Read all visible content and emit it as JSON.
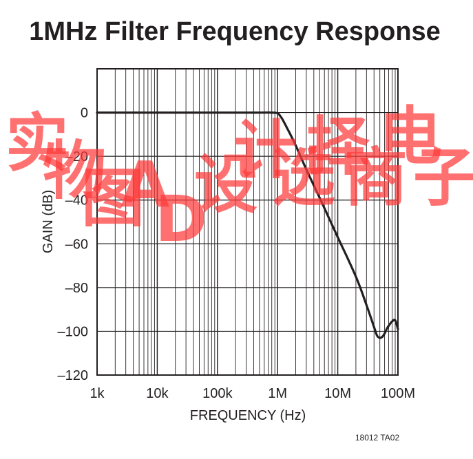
{
  "chart_data": {
    "type": "line",
    "title": "1MHz Filter Frequency Response",
    "xlabel": "FREQUENCY (Hz)",
    "ylabel": "GAIN (dB)",
    "x_scale": "log",
    "xlim": [
      1000,
      100000000
    ],
    "ylim": [
      -120,
      20
    ],
    "grid": true,
    "x_tick_labels": [
      "1k",
      "10k",
      "100k",
      "1M",
      "10M",
      "100M"
    ],
    "x_tick_values": [
      1000,
      10000,
      100000,
      1000000,
      10000000,
      100000000
    ],
    "y_tick_labels": [
      "0",
      "–20",
      "–40",
      "–60",
      "–80",
      "–100",
      "–120"
    ],
    "y_tick_values": [
      0,
      -20,
      -40,
      -60,
      -80,
      -100,
      -120
    ],
    "series": [
      {
        "color": "#231f20",
        "x": [
          1000,
          10000,
          100000,
          500000,
          800000,
          1000000,
          1100000,
          1200000,
          1400000,
          1700000,
          2000000,
          3000000,
          5000000,
          10000000,
          20000000,
          30000000,
          40000000,
          45000000,
          50000000,
          55000000,
          60000000,
          65000000,
          70000000,
          80000000,
          90000000,
          100000000
        ],
        "y": [
          0,
          0,
          0,
          0,
          0,
          -0.3,
          -1.5,
          -3,
          -6.5,
          -11,
          -15,
          -26,
          -39,
          -57,
          -75,
          -88,
          -98,
          -102,
          -103,
          -102.5,
          -101,
          -99,
          -97.5,
          -95.5,
          -95,
          -99
        ]
      }
    ]
  },
  "figure_id": "18012 TA02",
  "watermark_text": "实物图AD设计选择商电子"
}
